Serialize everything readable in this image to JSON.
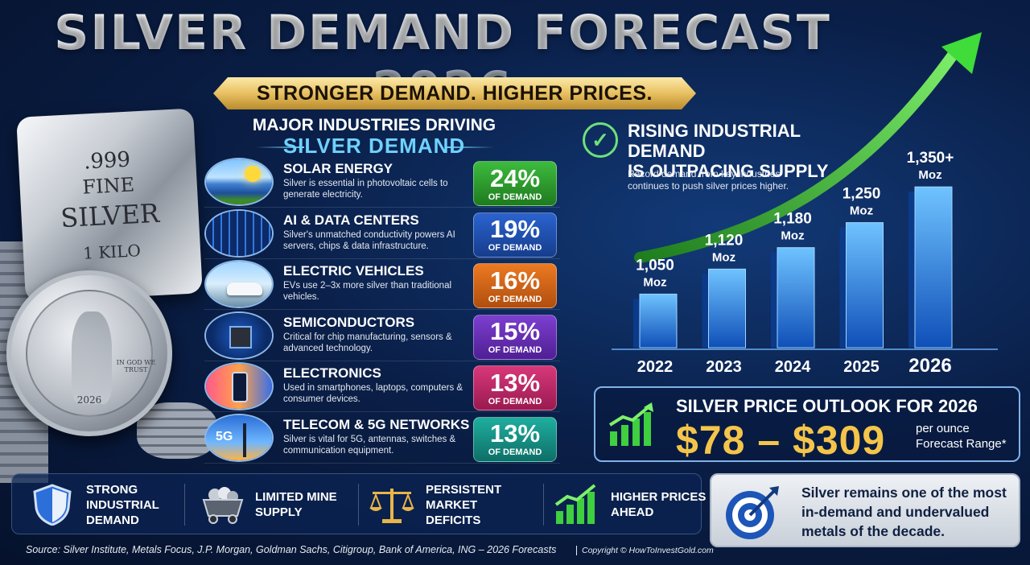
{
  "header": {
    "title": "SILVER DEMAND FORECAST 2026",
    "ribbon": "STRONGER DEMAND. HIGHER PRICES."
  },
  "silver_bar": {
    "line1": ".999",
    "line2": "FINE",
    "line3": "SILVER",
    "line4": "1 KILO"
  },
  "coin": {
    "motto": "IN GOD WE TRUST",
    "year": "2026"
  },
  "industries": {
    "heading1": "MAJOR INDUSTRIES DRIVING",
    "heading2": "SILVER DEMAND",
    "rows": [
      {
        "name": "SOLAR ENERGY",
        "desc": "Silver is essential in photovoltaic cells to generate electricity.",
        "pct": "24%",
        "of": "OF DEMAND",
        "color": "#2f9b2f"
      },
      {
        "name": "AI & DATA CENTERS",
        "desc": "Silver's unmatched conductivity powers AI servers, chips & data infrastructure.",
        "pct": "19%",
        "of": "OF DEMAND",
        "color": "#1f4fae"
      },
      {
        "name": "ELECTRIC VEHICLES",
        "desc": "EVs use 2–3x more silver than traditional vehicles.",
        "pct": "16%",
        "of": "OF DEMAND",
        "color": "#d2661a"
      },
      {
        "name": "SEMICONDUCTORS",
        "desc": "Critical for chip manufacturing, sensors & advanced technology.",
        "pct": "15%",
        "of": "OF DEMAND",
        "color": "#6a2fb4"
      },
      {
        "name": "ELECTRONICS",
        "desc": "Used in smartphones, laptops, computers & consumer devices.",
        "pct": "13%",
        "of": "OF DEMAND",
        "color": "#c42a6a"
      },
      {
        "name": "TELECOM & 5G NETWORKS",
        "desc": "Silver is vital for 5G, antennas, switches & communication equipment.",
        "pct": "13%",
        "of": "OF DEMAND",
        "color": "#14958f"
      }
    ],
    "telecom_icon_text": "5G"
  },
  "rising": {
    "title_line1": "RISING INDUSTRIAL DEMAND",
    "title_line2": "IS OUTPACING SUPPLY",
    "subtitle": "Record demand from key industries continues to push silver prices higher."
  },
  "chart_data": {
    "type": "bar",
    "title": "",
    "xlabel": "",
    "ylabel": "",
    "categories": [
      "2022",
      "2023",
      "2024",
      "2025",
      "2026"
    ],
    "values": [
      1050,
      1120,
      1180,
      1250,
      1350
    ],
    "value_labels": [
      "1,050",
      "1,120",
      "1,180",
      "1,250",
      "1,350+"
    ],
    "unit_label": "Moz",
    "highlight_category": "2026",
    "highlight_color": "#7be86a",
    "bar_color": "#2a8cff",
    "trend_arrow_color": "#3fdc3a"
  },
  "outlook": {
    "title": "SILVER PRICE OUTLOOK FOR 2026",
    "price": "$78 – $309",
    "unit": "per ounce",
    "note": "Forecast Range*"
  },
  "features": [
    {
      "line1": "STRONG INDUSTRIAL",
      "line2": "DEMAND",
      "icon": "shield-icon"
    },
    {
      "line1": "LIMITED MINE",
      "line2": "SUPPLY",
      "icon": "mine-cart-icon"
    },
    {
      "line1": "PERSISTENT MARKET",
      "line2": "DEFICITS",
      "icon": "scales-icon"
    },
    {
      "line1": "HIGHER PRICES",
      "line2": "AHEAD",
      "icon": "growth-chart-icon"
    }
  ],
  "note_box": {
    "text": "Silver remains one of the most in-demand and undervalued metals of the decade."
  },
  "footer": {
    "source": "Source: Silver Institute, Metals Focus, J.P. Morgan, Goldman Sachs, Citigroup, Bank of America, ING – 2026 Forecasts",
    "copyright": "Copyright © HowToInvestGold.com"
  }
}
